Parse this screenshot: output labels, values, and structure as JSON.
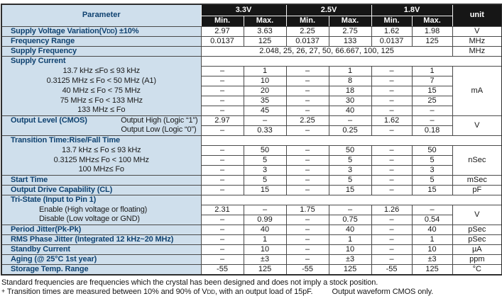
{
  "colors": {
    "header_bg": "#161616",
    "header_fg": "#ffffff",
    "param_bg": "#cfdfec",
    "param_fg": "#0f4270",
    "grid": "#4a4a4a",
    "value_fg": "#161616"
  },
  "table": {
    "header": {
      "param": "Parameter",
      "groups": [
        "3.3V",
        "2.5V",
        "1.8V"
      ],
      "min": "Min.",
      "max": "Max.",
      "unit": "unit"
    },
    "rows": [
      {
        "type": "main",
        "label": "Supply Voltage Variation(V{DD}) ±10%",
        "vals": [
          "2.97",
          "3.63",
          "2.25",
          "2.75",
          "1.62",
          "1.98"
        ],
        "u": "V"
      },
      {
        "type": "main",
        "label": "Frequency Range",
        "vals": [
          "0.0137",
          "125",
          "0.0137",
          "133",
          "0.0137",
          "125"
        ],
        "u": "MHz"
      },
      {
        "type": "span",
        "label": "Supply Frequency",
        "span": "2.048, 25, 26, 27, 50, 66.667, 100, 125",
        "u": "MHz"
      },
      {
        "type": "section",
        "label": "Supply Current"
      },
      {
        "type": "sub-center",
        "label": "13.7 kHz ≤Fo ≤ 93 kHz",
        "vals": [
          "–",
          "1",
          "–",
          "1",
          "–",
          "1"
        ],
        "u": "mA",
        "urs": 5
      },
      {
        "type": "sub-center",
        "label": "0.3125 MHz ≤ Fo < 50 MHz (A1)",
        "vals": [
          "–",
          "10",
          "–",
          "8",
          "–",
          "7"
        ]
      },
      {
        "type": "sub-center",
        "label": "40 MHz ≤ Fo < 75 MHz",
        "vals": [
          "–",
          "20",
          "–",
          "18",
          "–",
          "15"
        ]
      },
      {
        "type": "sub-center",
        "label": "75 MHz ≤ Fo < 133 MHz",
        "vals": [
          "–",
          "35",
          "–",
          "30",
          "–",
          "25"
        ]
      },
      {
        "type": "sub-center",
        "label": "133 MHz ≤ Fo",
        "vals": [
          "–",
          "45",
          "–",
          "40",
          "–",
          "–"
        ]
      },
      {
        "type": "split",
        "label": "Output Level (CMOS)",
        "label2": "Output High (Logic “1”)",
        "vals": [
          "2.97",
          "–",
          "2.25",
          "–",
          "1.62",
          "–"
        ],
        "u": "V",
        "urs": 2
      },
      {
        "type": "sub-right",
        "label": "Output Low (Logic “0”)",
        "vals": [
          "–",
          "0.33",
          "–",
          "0.25",
          "–",
          "0.18"
        ]
      },
      {
        "type": "section",
        "label": "Transition Time:Rise/Fall Time"
      },
      {
        "type": "sub-center",
        "label": "13.7 kHz ≤ Fo ≤  93 kHz",
        "vals": [
          "–",
          "50",
          "–",
          "50",
          "–",
          "50"
        ],
        "u": "nSec",
        "urs": 3
      },
      {
        "type": "sub-center",
        "label": "0.3125 MHz≤ Fo <  100 MHz",
        "vals": [
          "–",
          "5",
          "–",
          "5",
          "–",
          "5"
        ]
      },
      {
        "type": "sub-center",
        "label": "100 MHz≤ Fo",
        "vals": [
          "–",
          "3",
          "–",
          "3",
          "–",
          "3"
        ]
      },
      {
        "type": "main",
        "label": "Start Time",
        "vals": [
          "–",
          "5",
          "–",
          "5",
          "–",
          "5"
        ],
        "u": "mSec"
      },
      {
        "type": "main",
        "label": "Output Drive Capability (CL)",
        "vals": [
          "–",
          "15",
          "–",
          "15",
          "–",
          "15"
        ],
        "u": "pF"
      },
      {
        "type": "section",
        "label": "Tri-State (Input to Pin 1)"
      },
      {
        "type": "sub-left",
        "label": "Enable (High voltage or floating)",
        "vals": [
          "2.31",
          "–",
          "1.75",
          "–",
          "1.26",
          "–"
        ],
        "u": "V",
        "urs": 2
      },
      {
        "type": "sub-left",
        "label": "Disable (Low voltage or GND)",
        "vals": [
          "–",
          "0.99",
          "–",
          "0.75",
          "–",
          "0.54"
        ]
      },
      {
        "type": "main",
        "label": "Period Jitter(Pk-Pk)",
        "vals": [
          "–",
          "40",
          "–",
          "40",
          "–",
          "40"
        ],
        "u": "pSec"
      },
      {
        "type": "main",
        "label": "RMS Phase Jitter (Integrated 12 kHz~20 MHz)",
        "vals": [
          "–",
          "1",
          "–",
          "1",
          "–",
          "1"
        ],
        "u": "pSec"
      },
      {
        "type": "main",
        "label": "Standby Current",
        "vals": [
          "–",
          "10",
          "–",
          "10",
          "–",
          "10"
        ],
        "u": "µA"
      },
      {
        "type": "main",
        "label": "Aging (@ 25°C 1st year)",
        "vals": [
          "–",
          "±3",
          "–",
          "±3",
          "–",
          "±3"
        ],
        "u": "ppm"
      },
      {
        "type": "main",
        "label": "Storage Temp. Range",
        "vals": [
          "-55",
          "125",
          "-55",
          "125",
          "-55",
          "125"
        ],
        "u": "°C"
      }
    ]
  },
  "footnotes": {
    "line1": "Standard frequencies are frequencies which the crystal has been designed and does not imply a stock position.",
    "marker": "+",
    "line2": "Transition times are measured between 10% and 90% of V{DD}, with an output load of 15pF.",
    "line2b": "Output waveform CMOS only."
  }
}
